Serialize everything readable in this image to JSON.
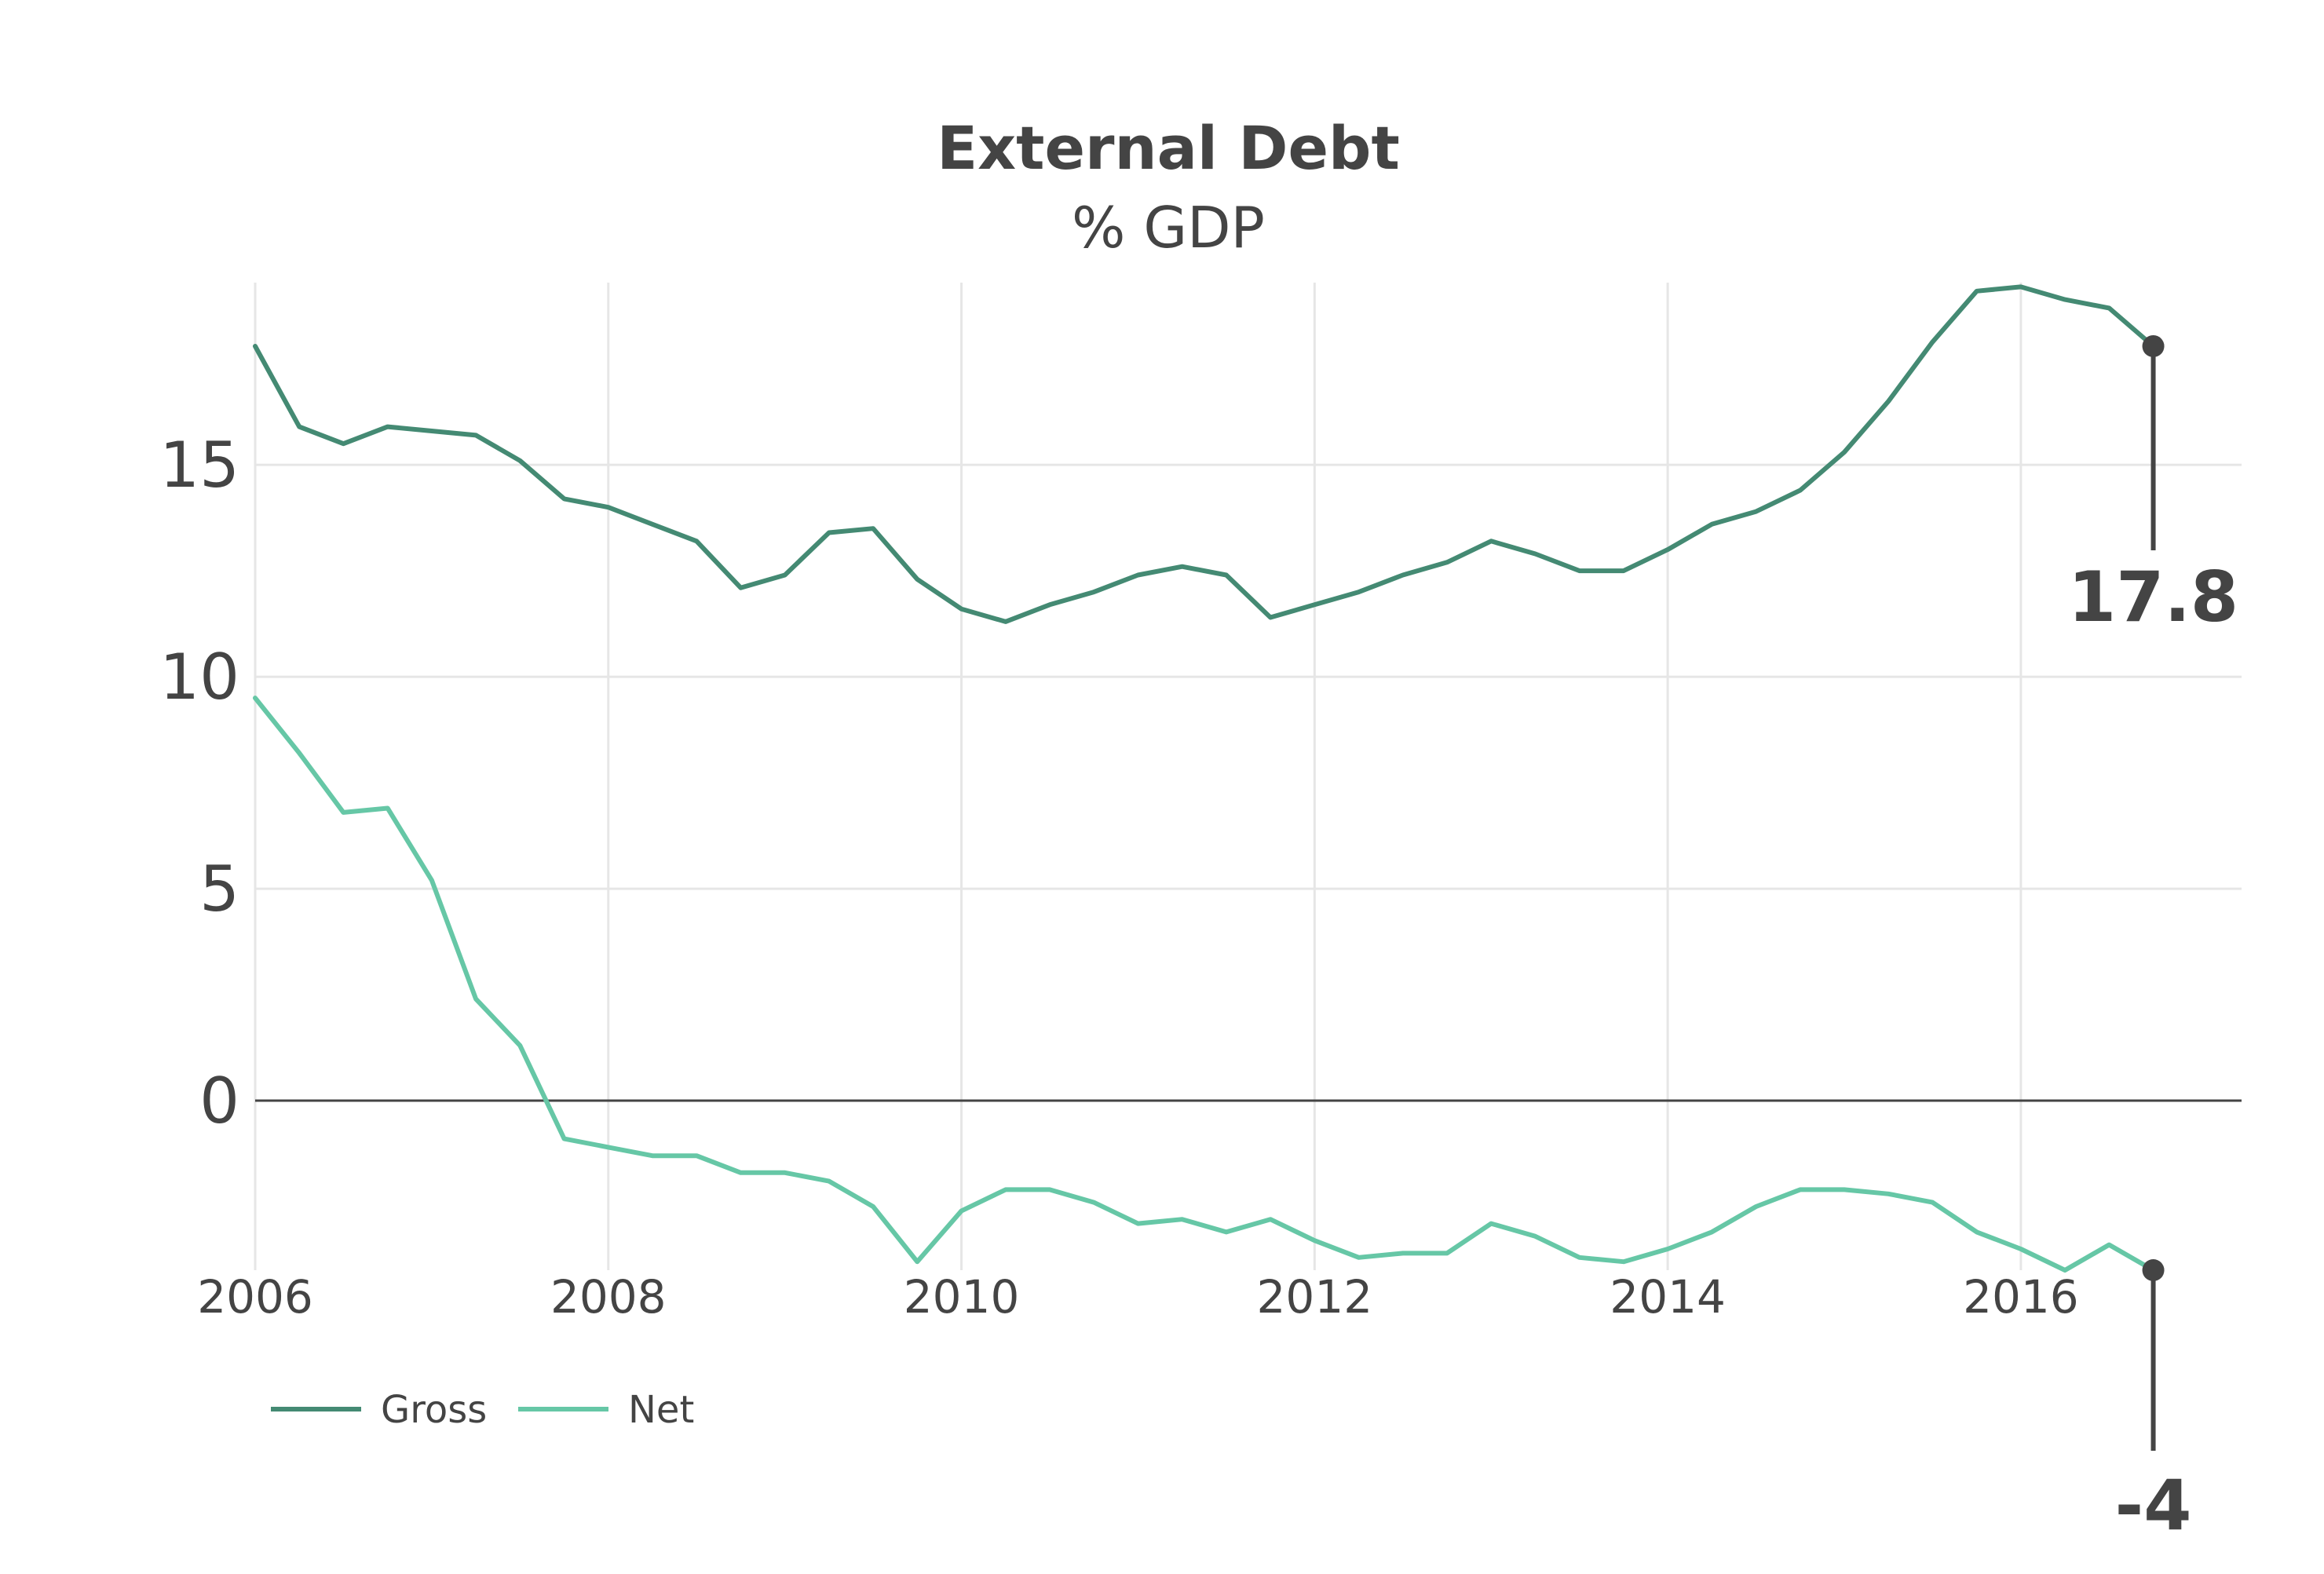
{
  "chart_data": {
    "type": "line",
    "title": "External Debt",
    "subtitle": "% GDP",
    "xlabel": "",
    "ylabel": "",
    "x_range": [
      2006,
      2017.25
    ],
    "ylim": [
      -4,
      19.3
    ],
    "y_ticks": [
      0,
      5,
      10,
      15
    ],
    "y_tick_labels": [
      "0",
      "5",
      "10",
      "15"
    ],
    "x_ticks": [
      2006,
      2008,
      2010,
      2012,
      2014,
      2016
    ],
    "x_tick_labels": [
      "2006",
      "2008",
      "2010",
      "2012",
      "2014",
      "2016"
    ],
    "grid": true,
    "zero_line": true,
    "legend_position": "bottom-left",
    "x": [
      2006.0,
      2006.25,
      2006.5,
      2006.75,
      2007.0,
      2007.25,
      2007.5,
      2007.75,
      2008.0,
      2008.25,
      2008.5,
      2008.75,
      2009.0,
      2009.25,
      2009.5,
      2009.75,
      2010.0,
      2010.25,
      2010.5,
      2010.75,
      2011.0,
      2011.25,
      2011.5,
      2011.75,
      2012.0,
      2012.25,
      2012.5,
      2012.75,
      2013.0,
      2013.25,
      2013.5,
      2013.75,
      2014.0,
      2014.25,
      2014.5,
      2014.75,
      2015.0,
      2015.25,
      2015.5,
      2015.75,
      2016.0,
      2016.25,
      2016.5,
      2016.75
    ],
    "series": [
      {
        "name": "Gross",
        "color": "#448a73",
        "values": [
          17.8,
          15.9,
          15.5,
          15.9,
          15.8,
          15.7,
          15.1,
          14.2,
          14.0,
          13.6,
          13.2,
          12.1,
          12.4,
          13.4,
          13.5,
          12.3,
          11.6,
          11.3,
          11.7,
          12.0,
          12.4,
          12.6,
          12.4,
          11.4,
          11.7,
          12.0,
          12.4,
          12.7,
          13.2,
          12.9,
          12.5,
          12.5,
          13.0,
          13.6,
          13.9,
          14.4,
          15.3,
          16.5,
          17.9,
          19.1,
          19.2,
          18.9,
          18.7,
          17.8
        ]
      },
      {
        "name": "Net",
        "color": "#66c7a6",
        "values": [
          9.5,
          8.2,
          6.8,
          6.9,
          5.2,
          2.4,
          1.3,
          -0.9,
          -1.1,
          -1.3,
          -1.3,
          -1.7,
          -1.7,
          -1.9,
          -2.5,
          -3.8,
          -2.6,
          -2.1,
          -2.1,
          -2.4,
          -2.9,
          -2.8,
          -3.1,
          -2.8,
          -3.3,
          -3.7,
          -3.6,
          -3.6,
          -2.9,
          -3.2,
          -3.7,
          -3.8,
          -3.5,
          -3.1,
          -2.5,
          -2.1,
          -2.1,
          -2.2,
          -2.4,
          -3.1,
          -3.5,
          -4.0,
          -3.4,
          -4.0
        ]
      }
    ],
    "annotations": [
      {
        "series": "Gross",
        "x": 2016.75,
        "y": 17.8,
        "label": "17.8"
      },
      {
        "series": "Net",
        "x": 2016.75,
        "y": -4.0,
        "label": "-4"
      }
    ]
  }
}
